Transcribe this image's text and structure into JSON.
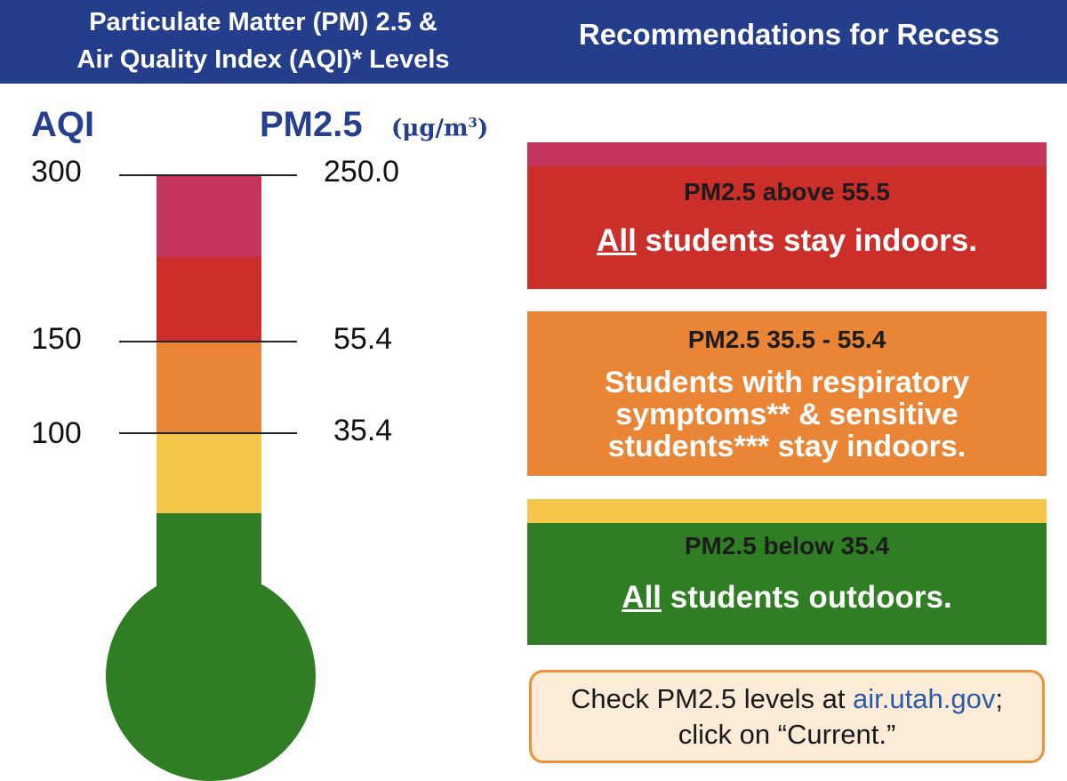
{
  "header": {
    "left_line1": "Particulate Matter (PM) 2.5 &",
    "left_line2": "Air Quality Index (AQI)* Levels",
    "right": "Recommendations for Recess"
  },
  "labels": {
    "aqi": "AQI",
    "pm": "PM2.5",
    "unit_base": "(μg/m",
    "unit_sup": "3",
    "unit_close": ")"
  },
  "ticks": {
    "aqi": [
      "300",
      "150",
      "100"
    ],
    "pm": [
      "250.0",
      "55.4",
      "35.4"
    ]
  },
  "colors": {
    "header": "#243e8c",
    "purple": "#c4345c",
    "red": "#cc2e2a",
    "orange": "#e98534",
    "yellow": "#f4c64a",
    "green": "#2f7e24",
    "label_blue": "#253f8e"
  },
  "recommendations": [
    {
      "heading": "PM2.5 above 55.5",
      "emphasis": "All",
      "body": " students stay indoors."
    },
    {
      "heading": "PM2.5 35.5 - 55.4",
      "line1": "Students with respiratory",
      "line2": "symptoms** & sensitive",
      "line3": "students*** stay indoors."
    },
    {
      "heading": "PM2.5 below 35.4",
      "emphasis": "All",
      "body": " students outdoors."
    }
  ],
  "note": {
    "prefix": "Check PM2.5 levels at ",
    "link": "air.utah.gov",
    "suffix": ";",
    "line2": "click on “Current.”"
  }
}
